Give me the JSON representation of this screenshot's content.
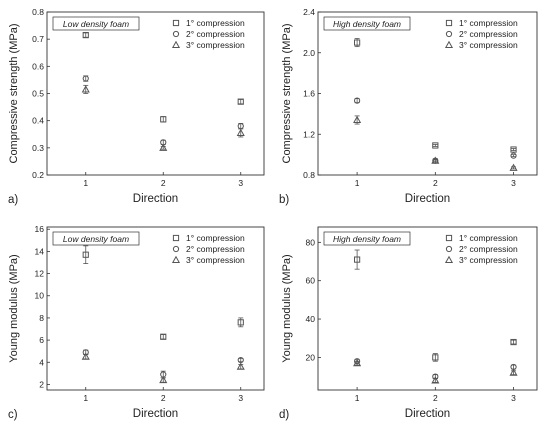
{
  "chart_data": [
    {
      "type": "scatter",
      "panel_label": "a)",
      "inset_title": "Low density foam",
      "xlabel": "Direction",
      "ylabel": "Compressive strength (MPa)",
      "categories": [
        "1",
        "2",
        "3"
      ],
      "xlim": [
        0.5,
        3.3
      ],
      "ylim": [
        0.2,
        0.8
      ],
      "yticks": [
        0.2,
        0.3,
        0.4,
        0.5,
        0.6,
        0.7,
        0.8
      ],
      "ytick_labels": [
        "0.2",
        "0.3",
        "0.4",
        "0.5",
        "0.6",
        "0.7",
        "0.8"
      ],
      "legend_position": "top-right",
      "series": [
        {
          "name": "1° compression",
          "marker": "square",
          "x": [
            1,
            2,
            3
          ],
          "values": [
            0.715,
            0.405,
            0.47
          ],
          "errors": [
            0.008,
            0.01,
            0.008
          ]
        },
        {
          "name": "2° compression",
          "marker": "circle",
          "x": [
            1,
            2,
            3
          ],
          "values": [
            0.555,
            0.32,
            0.38
          ],
          "errors": [
            0.01,
            0.008,
            0.01
          ]
        },
        {
          "name": "3° compression",
          "marker": "triangle",
          "x": [
            1,
            2,
            3
          ],
          "values": [
            0.515,
            0.3,
            0.355
          ],
          "errors": [
            0.015,
            0.005,
            0.015
          ]
        }
      ]
    },
    {
      "type": "scatter",
      "panel_label": "b)",
      "inset_title": "High density foam",
      "xlabel": "Direction",
      "ylabel": "Compressive strength (MPa)",
      "categories": [
        "1",
        "2",
        "3"
      ],
      "xlim": [
        0.5,
        3.3
      ],
      "ylim": [
        0.8,
        2.4
      ],
      "yticks": [
        0.8,
        1.2,
        1.6,
        2.0,
        2.4
      ],
      "ytick_labels": [
        "0.8",
        "1.2",
        "1.6",
        "2.0",
        "2.4"
      ],
      "legend_position": "top-right",
      "series": [
        {
          "name": "1° compression",
          "marker": "square",
          "x": [
            1,
            2,
            3
          ],
          "values": [
            2.1,
            1.09,
            1.05
          ],
          "errors": [
            0.04,
            0.01,
            0.01
          ]
        },
        {
          "name": "2° compression",
          "marker": "circle",
          "x": [
            1,
            2,
            3
          ],
          "values": [
            1.53,
            0.94,
            0.99
          ],
          "errors": [
            0.02,
            0.01,
            0.01
          ]
        },
        {
          "name": "3° compression",
          "marker": "triangle",
          "x": [
            1,
            2,
            3
          ],
          "values": [
            1.34,
            0.94,
            0.87
          ],
          "errors": [
            0.04,
            0.02,
            0.01
          ]
        }
      ]
    },
    {
      "type": "scatter",
      "panel_label": "c)",
      "inset_title": "Low density foam",
      "xlabel": "Direction",
      "ylabel": "Young modulus (MPa)",
      "categories": [
        "1",
        "2",
        "3"
      ],
      "xlim": [
        0.5,
        3.3
      ],
      "ylim": [
        1.5,
        16.2
      ],
      "yticks": [
        2,
        4,
        6,
        8,
        10,
        12,
        14,
        16
      ],
      "ytick_labels": [
        "2",
        "4",
        "6",
        "8",
        "10",
        "12",
        "14",
        "16"
      ],
      "legend_position": "top-right",
      "series": [
        {
          "name": "1° compression",
          "marker": "square",
          "x": [
            1,
            2,
            3
          ],
          "values": [
            13.7,
            6.3,
            7.6
          ],
          "errors": [
            0.8,
            0.2,
            0.4
          ]
        },
        {
          "name": "2° compression",
          "marker": "circle",
          "x": [
            1,
            2,
            3
          ],
          "values": [
            4.9,
            2.9,
            4.2
          ],
          "errors": [
            0.2,
            0.3,
            0.15
          ]
        },
        {
          "name": "3° compression",
          "marker": "triangle",
          "x": [
            1,
            2,
            3
          ],
          "values": [
            4.5,
            2.4,
            3.6
          ],
          "errors": [
            0.2,
            0.2,
            0.2
          ]
        }
      ]
    },
    {
      "type": "scatter",
      "panel_label": "d)",
      "inset_title": "High density foam",
      "xlabel": "Direction",
      "ylabel": "Young modulus (MPa)",
      "categories": [
        "1",
        "2",
        "3"
      ],
      "xlim": [
        0.5,
        3.3
      ],
      "ylim": [
        3,
        88
      ],
      "yticks": [
        20,
        40,
        60,
        80
      ],
      "ytick_labels": [
        "20",
        "40",
        "60",
        "80"
      ],
      "legend_position": "top-right",
      "series": [
        {
          "name": "1° compression",
          "marker": "square",
          "x": [
            1,
            2,
            3
          ],
          "values": [
            71,
            20,
            28
          ],
          "errors": [
            5,
            2,
            1
          ]
        },
        {
          "name": "2° compression",
          "marker": "circle",
          "x": [
            1,
            2,
            3
          ],
          "values": [
            18,
            10,
            15
          ],
          "errors": [
            1,
            1,
            1
          ]
        },
        {
          "name": "3° compression",
          "marker": "triangle",
          "x": [
            1,
            2,
            3
          ],
          "values": [
            17,
            8,
            12
          ],
          "errors": [
            1,
            1,
            1
          ]
        }
      ]
    }
  ],
  "colors": {
    "axis": "#333333",
    "marker": "#555555",
    "text": "#222222"
  }
}
